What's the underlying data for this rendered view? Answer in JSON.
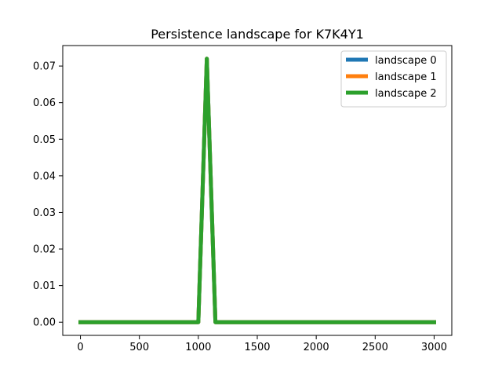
{
  "chart_data": {
    "type": "line",
    "title": "Persistence landscape for K7K4Y1",
    "xlabel": "",
    "ylabel": "",
    "xlim": [
      -150,
      3150
    ],
    "ylim": [
      -0.0036,
      0.0756
    ],
    "x_ticks": [
      0,
      500,
      1000,
      1500,
      2000,
      2500,
      3000
    ],
    "x_tick_labels": [
      "0",
      "500",
      "1000",
      "1500",
      "2000",
      "2500",
      "3000"
    ],
    "y_ticks": [
      0.0,
      0.01,
      0.02,
      0.03,
      0.04,
      0.05,
      0.06,
      0.07
    ],
    "y_tick_labels": [
      "0.00",
      "0.01",
      "0.02",
      "0.03",
      "0.04",
      "0.05",
      "0.06",
      "0.07"
    ],
    "grid": false,
    "legend_position": "top-right",
    "series": [
      {
        "name": "landscape 0",
        "color": "#1f77b4",
        "x": [
          0,
          1000,
          1072,
          1145,
          3000
        ],
        "y": [
          0,
          0,
          0.072,
          0,
          0
        ]
      },
      {
        "name": "landscape 1",
        "color": "#ff7f0e",
        "x": [
          0,
          1000,
          1072,
          1145,
          3000
        ],
        "y": [
          0,
          0,
          0.072,
          0,
          0
        ]
      },
      {
        "name": "landscape 2",
        "color": "#2ca02c",
        "x": [
          0,
          1000,
          1072,
          1145,
          3000
        ],
        "y": [
          0,
          0,
          0.072,
          0,
          0
        ]
      }
    ]
  }
}
